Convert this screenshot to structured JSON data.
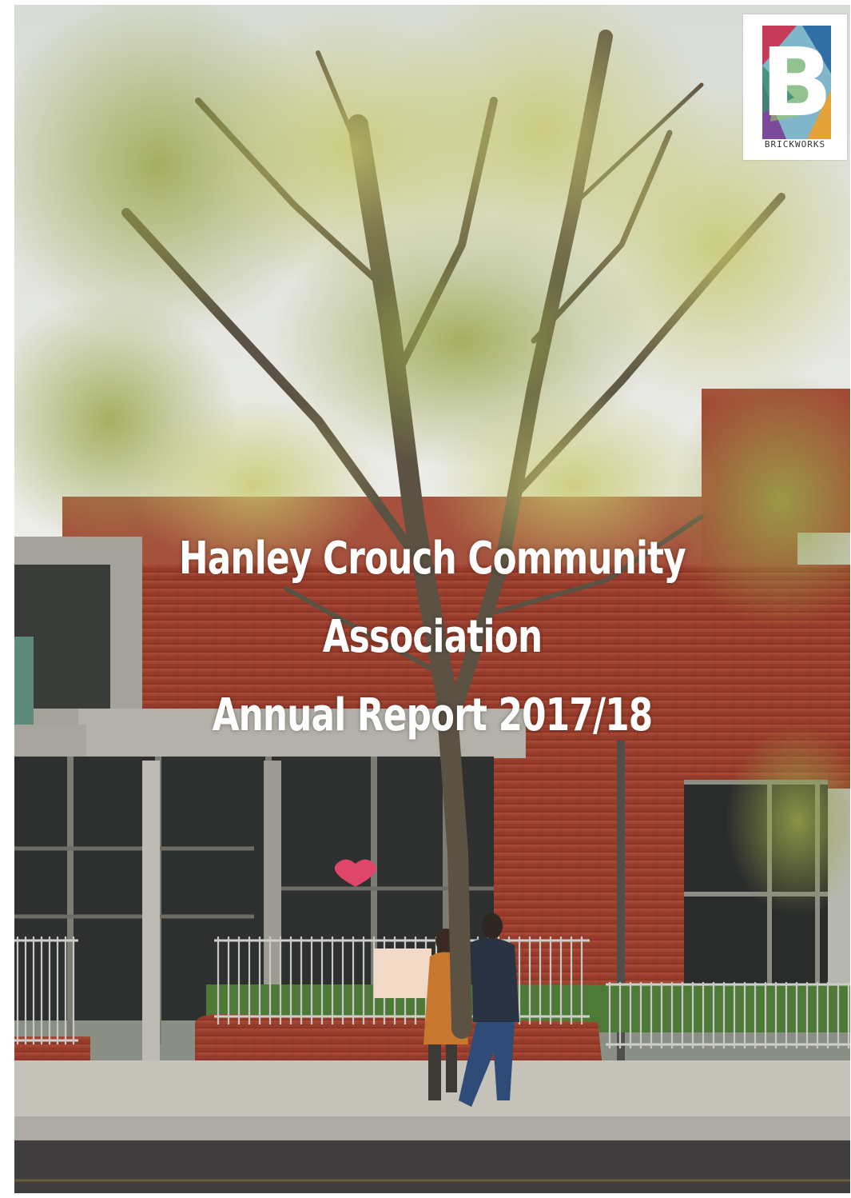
{
  "cover": {
    "title_line_1": "Hanley Crouch Community",
    "title_line_2": "Association",
    "title_line_3": "Annual Report 2017/18"
  },
  "logo": {
    "wordmark": "BRICKWORKS",
    "letter": "B"
  },
  "colors": {
    "brick": "#a6402e",
    "concrete": "#9c9a92",
    "sky": "#e6e6e2",
    "foliage": "#b7bf5a",
    "pavement": "#bdbab2",
    "road": "#3c3a3a"
  }
}
